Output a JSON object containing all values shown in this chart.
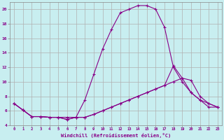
{
  "background_color": "#c8eef0",
  "grid_color": "#b0b0b0",
  "line_color": "#880088",
  "xlabel": "Windchill (Refroidissement éolien,°C)",
  "xlabel_color": "#880088",
  "tick_color": "#880088",
  "xlim": [
    -0.5,
    23.5
  ],
  "ylim": [
    4,
    21
  ],
  "yticks": [
    4,
    6,
    8,
    10,
    12,
    14,
    16,
    18,
    20
  ],
  "xticks": [
    0,
    1,
    2,
    3,
    4,
    5,
    6,
    7,
    8,
    9,
    10,
    11,
    12,
    13,
    14,
    15,
    16,
    17,
    18,
    19,
    20,
    21,
    22,
    23
  ],
  "series1_x": [
    0,
    1,
    2,
    3,
    4,
    5,
    6,
    7,
    8,
    9,
    10,
    11,
    12,
    13,
    14,
    15,
    16,
    17,
    18,
    19,
    20,
    21,
    22,
    23
  ],
  "series1_y": [
    7,
    6.1,
    5.2,
    5.2,
    5.1,
    5.1,
    5.1,
    5.1,
    5.1,
    5.5,
    6.0,
    6.5,
    7.0,
    7.5,
    8.0,
    8.5,
    9.0,
    9.5,
    10.0,
    10.5,
    10.2,
    8.0,
    7.0,
    6.5
  ],
  "series2_x": [
    0,
    1,
    2,
    3,
    4,
    5,
    6,
    7,
    8,
    9,
    10,
    11,
    12,
    13,
    14,
    15,
    16,
    17,
    18,
    19,
    20,
    21,
    22,
    23
  ],
  "series2_y": [
    7,
    6.1,
    5.2,
    5.2,
    5.1,
    5.1,
    4.8,
    5.1,
    7.5,
    11.0,
    14.5,
    17.2,
    19.5,
    20.0,
    20.5,
    20.5,
    20.0,
    17.5,
    12.0,
    10.0,
    8.5,
    7.5,
    6.5,
    6.5
  ],
  "series3_x": [
    0,
    1,
    2,
    3,
    4,
    5,
    6,
    7,
    8,
    9,
    10,
    11,
    12,
    13,
    14,
    15,
    16,
    17,
    18,
    19,
    20,
    21,
    22,
    23
  ],
  "series3_y": [
    7,
    6.1,
    5.2,
    5.2,
    5.1,
    5.1,
    4.8,
    5.1,
    5.1,
    5.5,
    6.0,
    6.5,
    7.0,
    7.5,
    8.0,
    8.5,
    9.0,
    9.5,
    12.2,
    10.5,
    8.5,
    7.5,
    7.0,
    6.5
  ]
}
